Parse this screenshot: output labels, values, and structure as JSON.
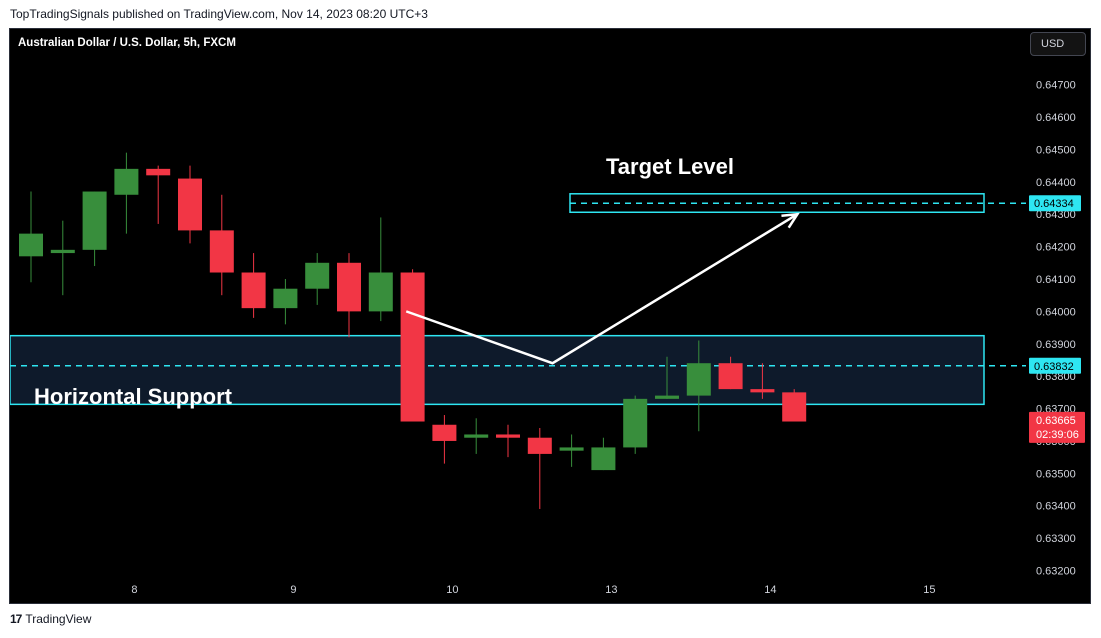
{
  "publish_line": "TopTradingSignals published on TradingView.com, Nov 14, 2023 08:20 UTC+3",
  "footer": {
    "brand": "TradingView",
    "logo_glyph": "17"
  },
  "currency": "USD",
  "colors": {
    "background": "#000000",
    "bull": "#388e3c",
    "bear": "#f23645",
    "zone_stroke": "#2ee6f2",
    "zone_fill": "#0e1a2b",
    "text": "#ffffff",
    "axis_text": "#d1d4dc",
    "price_badge": "#f23645",
    "level_badge": "#2ee6f2"
  },
  "chart_data": {
    "type": "candlestick",
    "title": "Australian Dollar / U.S. Dollar, 5h, FXCM",
    "y_ticks": [
      0.647,
      0.646,
      0.645,
      0.644,
      0.643,
      0.642,
      0.641,
      0.64,
      0.639,
      0.638,
      0.637,
      0.636,
      0.635,
      0.634,
      0.633,
      0.632
    ],
    "ylim": [
      0.6318,
      0.6481
    ],
    "x_ticks": [
      {
        "label": "8",
        "index": 3
      },
      {
        "label": "9",
        "index": 8
      },
      {
        "label": "10",
        "index": 13
      },
      {
        "label": "13",
        "index": 18
      },
      {
        "label": "14",
        "index": 23
      },
      {
        "label": "15",
        "index": 28
      }
    ],
    "candles": [
      {
        "o": 0.6417,
        "h": 0.6437,
        "l": 0.6409,
        "c": 0.6424
      },
      {
        "o": 0.6418,
        "h": 0.6428,
        "l": 0.6405,
        "c": 0.6419
      },
      {
        "o": 0.6419,
        "h": 0.6437,
        "l": 0.6414,
        "c": 0.6437
      },
      {
        "o": 0.6436,
        "h": 0.6449,
        "l": 0.6424,
        "c": 0.6444
      },
      {
        "o": 0.6444,
        "h": 0.6445,
        "l": 0.6427,
        "c": 0.6442
      },
      {
        "o": 0.6441,
        "h": 0.6445,
        "l": 0.6421,
        "c": 0.6425
      },
      {
        "o": 0.6425,
        "h": 0.6436,
        "l": 0.6405,
        "c": 0.6412
      },
      {
        "o": 0.6412,
        "h": 0.6418,
        "l": 0.6398,
        "c": 0.6401
      },
      {
        "o": 0.6401,
        "h": 0.641,
        "l": 0.6396,
        "c": 0.6407
      },
      {
        "o": 0.6407,
        "h": 0.6418,
        "l": 0.6402,
        "c": 0.6415
      },
      {
        "o": 0.6415,
        "h": 0.6418,
        "l": 0.6392,
        "c": 0.64
      },
      {
        "o": 0.64,
        "h": 0.6429,
        "l": 0.6397,
        "c": 0.6412
      },
      {
        "o": 0.6412,
        "h": 0.6413,
        "l": 0.6366,
        "c": 0.6366
      },
      {
        "o": 0.6365,
        "h": 0.6368,
        "l": 0.6353,
        "c": 0.636
      },
      {
        "o": 0.6361,
        "h": 0.6367,
        "l": 0.6356,
        "c": 0.6362
      },
      {
        "o": 0.6362,
        "h": 0.6365,
        "l": 0.6355,
        "c": 0.6361
      },
      {
        "o": 0.6361,
        "h": 0.6364,
        "l": 0.6339,
        "c": 0.6356
      },
      {
        "o": 0.6357,
        "h": 0.6362,
        "l": 0.6352,
        "c": 0.6358
      },
      {
        "o": 0.6351,
        "h": 0.6361,
        "l": 0.6351,
        "c": 0.6358
      },
      {
        "o": 0.6358,
        "h": 0.6374,
        "l": 0.6356,
        "c": 0.6373
      },
      {
        "o": 0.6373,
        "h": 0.6386,
        "l": 0.6373,
        "c": 0.6374
      },
      {
        "o": 0.6374,
        "h": 0.6391,
        "l": 0.6363,
        "c": 0.6384
      },
      {
        "o": 0.6384,
        "h": 0.6386,
        "l": 0.6376,
        "c": 0.6376
      },
      {
        "o": 0.6376,
        "h": 0.6384,
        "l": 0.6373,
        "c": 0.6375
      },
      {
        "o": 0.6375,
        "h": 0.6376,
        "l": 0.6366,
        "c": 0.6366
      }
    ],
    "support_zone": {
      "label": "Horizontal Support",
      "top": 0.63925,
      "bottom": 0.63713,
      "level": 0.63832,
      "level_label": "0.63832"
    },
    "target_zone": {
      "label": "Target Level",
      "top": 0.64363,
      "bottom": 0.64306,
      "level": 0.64334,
      "level_label": "0.64334"
    },
    "path_arrow": [
      {
        "index": 11.8,
        "price": 0.64
      },
      {
        "index": 16.4,
        "price": 0.6384
      },
      {
        "index": 24.1,
        "price": 0.643
      }
    ],
    "last_price": {
      "value": "0.63665",
      "countdown": "02:39:06"
    }
  }
}
